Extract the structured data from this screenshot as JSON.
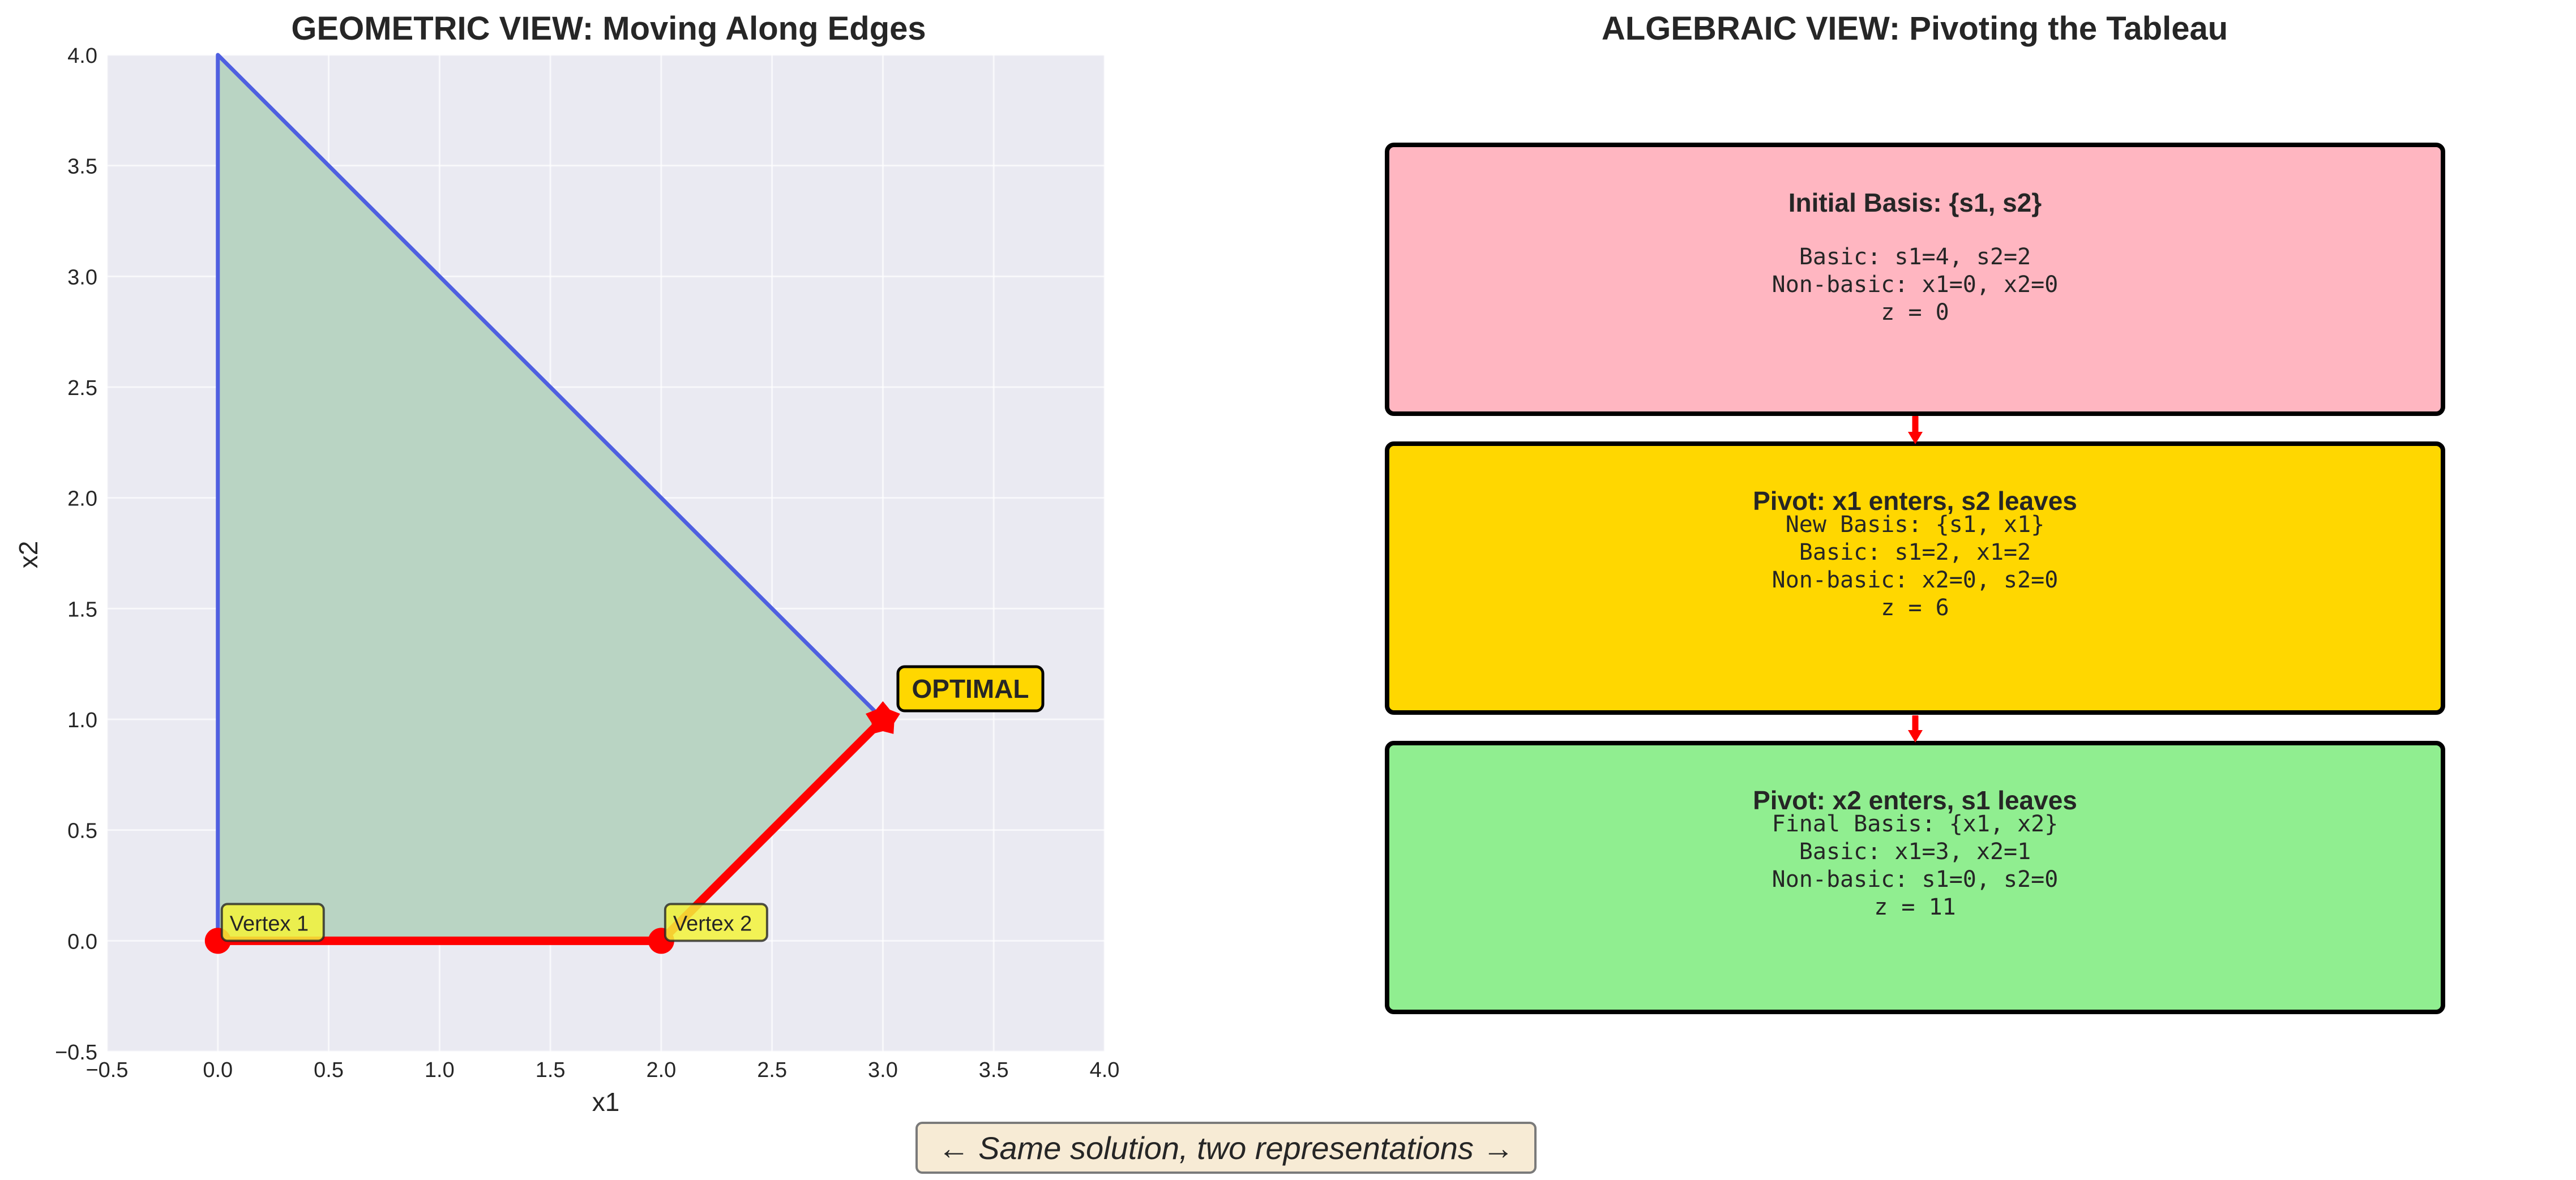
{
  "left_title": "GEOMETRIC VIEW: Moving Along Edges",
  "right_title": "ALGEBRAIC VIEW: Pivoting the Tableau",
  "caption": "← Same solution, two representations →",
  "colors": {
    "plot_bg": "#eaeaf2",
    "grid": "#ffffff",
    "feasible_fill": "#b9d4c3",
    "boundary": "#4f5fe0",
    "path": "#ff0000",
    "vertex_label_bg": "#f3f33a",
    "optimal_label_bg": "#ffd700",
    "box1": "#ffb6c1",
    "box2": "#ffd700",
    "box3": "#90ee90",
    "caption_bg": "#f7ebd5"
  },
  "chart_data": {
    "type": "line",
    "title": "GEOMETRIC VIEW: Moving Along Edges",
    "xlabel": "x1",
    "ylabel": "x2",
    "xlim": [
      -0.5,
      4.0
    ],
    "ylim": [
      -0.5,
      4.0
    ],
    "grid": true,
    "xticks": [
      "−0.5",
      "0.0",
      "0.5",
      "1.0",
      "1.5",
      "2.0",
      "2.5",
      "3.0",
      "3.5",
      "4.0"
    ],
    "yticks": [
      "−0.5",
      "0.0",
      "0.5",
      "1.0",
      "1.5",
      "2.0",
      "2.5",
      "3.0",
      "3.5",
      "4.0"
    ],
    "xtick_values": [
      -0.5,
      0,
      0.5,
      1,
      1.5,
      2,
      2.5,
      3,
      3.5,
      4
    ],
    "ytick_values": [
      -0.5,
      0,
      0.5,
      1,
      1.5,
      2,
      2.5,
      3,
      3.5,
      4
    ],
    "feasible_region": [
      [
        0,
        0
      ],
      [
        2,
        0
      ],
      [
        3,
        1
      ],
      [
        0,
        4
      ]
    ],
    "series": [
      {
        "name": "boundary",
        "x": [
          0,
          0,
          3
        ],
        "y": [
          0,
          4,
          1
        ]
      },
      {
        "name": "simplex path",
        "x": [
          0,
          2,
          3
        ],
        "y": [
          0,
          0,
          1
        ]
      }
    ],
    "vertices": [
      {
        "label": "Vertex 1",
        "x": 0,
        "y": 0
      },
      {
        "label": "Vertex 2",
        "x": 2,
        "y": 0
      }
    ],
    "optimal": {
      "label": "OPTIMAL",
      "x": 3,
      "y": 1
    }
  },
  "pivot_steps": [
    {
      "title": "Initial Basis: {s1, s2}",
      "lines": [
        "Basic: s1=4, s2=2",
        "Non-basic: x1=0, x2=0",
        "z = 0"
      ]
    },
    {
      "title": "Pivot: x1 enters, s2 leaves",
      "lines": [
        "New Basis: {s1, x1}",
        "Basic: s1=2, x1=2",
        "Non-basic: x2=0, s2=0",
        "z = 6"
      ]
    },
    {
      "title": "Pivot: x2 enters, s1 leaves",
      "lines": [
        "Final Basis: {x1, x2}",
        "Basic: x1=3, x2=1",
        "Non-basic: s1=0, s2=0",
        "z = 11"
      ]
    }
  ]
}
